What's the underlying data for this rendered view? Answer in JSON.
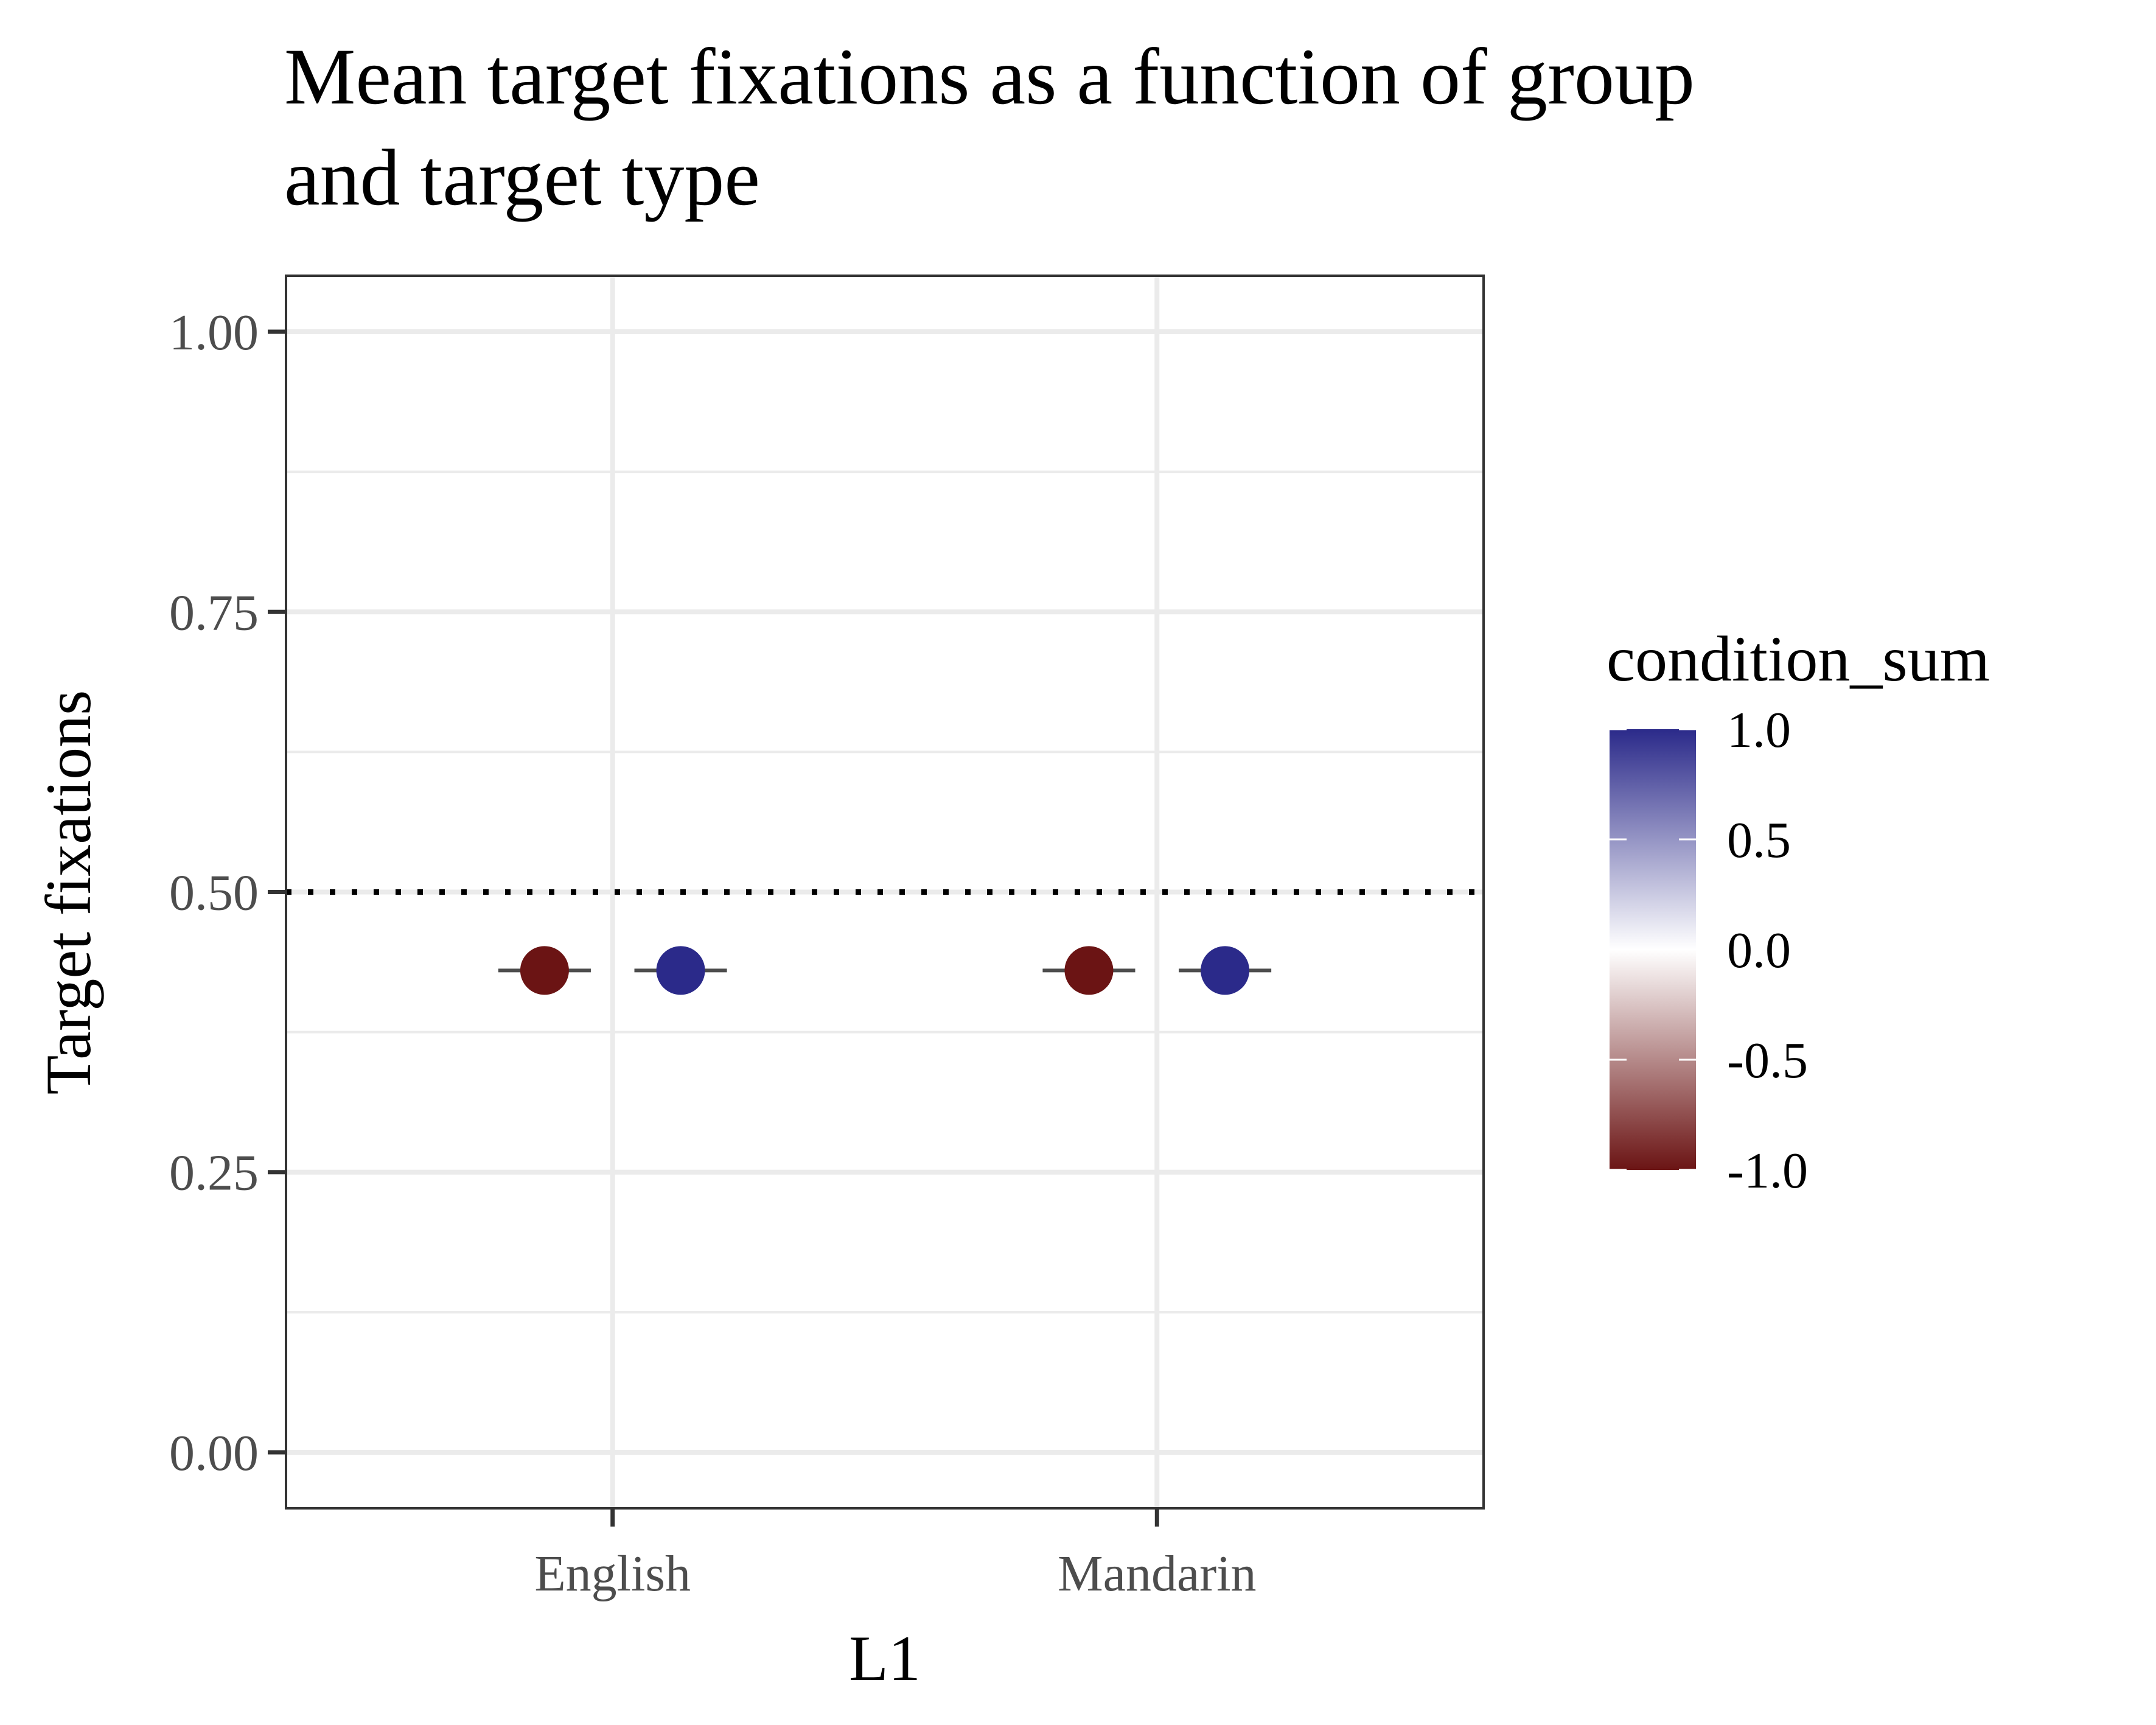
{
  "chart_data": {
    "type": "scatter",
    "title_lines": [
      "Mean target fixations as a function of group",
      "and target type"
    ],
    "xlabel": "L1",
    "ylabel": "Target fixations",
    "categories": [
      "English",
      "Mandarin"
    ],
    "ylim": [
      -0.05,
      1.05
    ],
    "yticks": [
      0.0,
      0.25,
      0.5,
      0.75,
      1.0
    ],
    "ytick_labels": [
      "0.00",
      "0.25",
      "0.50",
      "0.75",
      "1.00"
    ],
    "reference_line": {
      "y": 0.5,
      "style": "dotted"
    },
    "grid": true,
    "series": [
      {
        "condition_sum": -1.0,
        "color": "#6b1414",
        "values": [
          0.43,
          0.43
        ],
        "error_low": [
          0.43,
          0.43
        ],
        "error_high": [
          0.43,
          0.43
        ]
      },
      {
        "condition_sum": 1.0,
        "color": "#2b2a8a",
        "values": [
          0.43,
          0.43
        ],
        "error_low": [
          0.43,
          0.43
        ],
        "error_high": [
          0.43,
          0.43
        ]
      }
    ],
    "legend": {
      "title": "condition_sum",
      "position": "right",
      "type": "colorbar",
      "breaks": [
        1.0,
        0.5,
        0.0,
        -0.5,
        -1.0
      ],
      "labels": [
        "1.0",
        "0.5",
        "0.0",
        "-0.5",
        "-1.0"
      ],
      "colors": {
        "high": "#2b2a8a",
        "mid": "#ffffff",
        "low": "#6b1414"
      }
    }
  }
}
